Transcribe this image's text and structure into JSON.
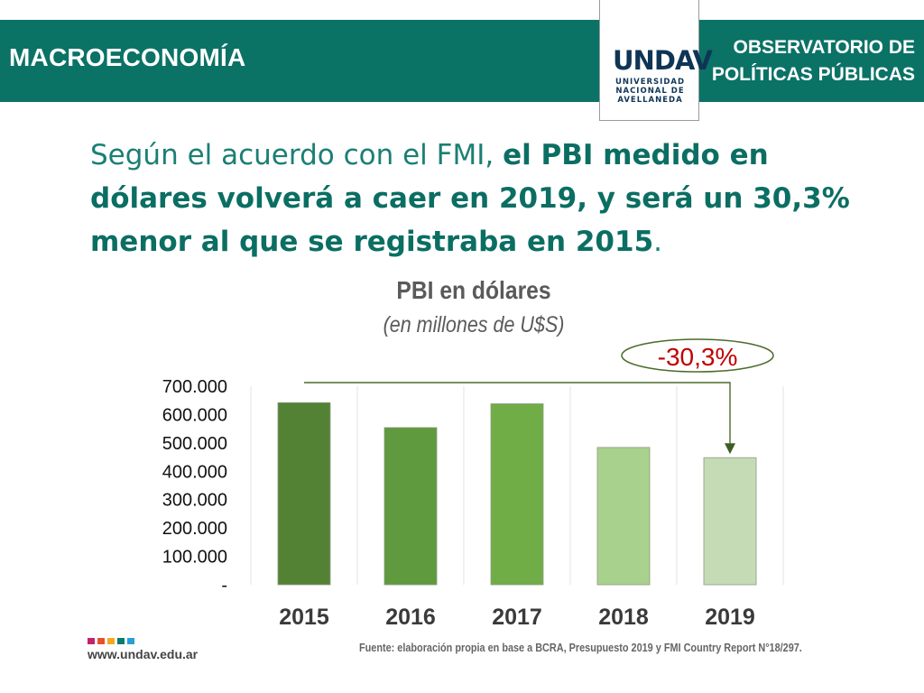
{
  "header": {
    "section_title": "MACROECONOMÍA",
    "observatorio_line1": "OBSERVATORIO DE",
    "observatorio_line2": "POLÍTICAS PÚBLICAS",
    "logo_text": "UNDAV",
    "logo_line1": "UNIVERSIDAD",
    "logo_line2": "NACIONAL DE",
    "logo_line3": "AVELLANEDA"
  },
  "headline": {
    "normal": "Según el acuerdo con el FMI, ",
    "bold": "el PBI medido en dólares volverá a caer en 2019, y será un 30,3% menor al que se registraba en 2015",
    "end": "."
  },
  "chart_data": {
    "type": "bar",
    "title": "PBI en dólares",
    "subtitle": "(en millones de U$S)",
    "categories": [
      "2015",
      "2016",
      "2017",
      "2018",
      "2019"
    ],
    "values": [
      642000,
      554000,
      638000,
      484000,
      448000
    ],
    "bar_colors": [
      "#548235",
      "#5f9a3e",
      "#70ad47",
      "#a9d18e",
      "#c5dbb6"
    ],
    "ylim": [
      0,
      700000
    ],
    "yticks": [
      0,
      100000,
      200000,
      300000,
      400000,
      500000,
      600000,
      700000
    ],
    "ytick_labels": [
      "-",
      "100.000",
      "200.000",
      "300.000",
      "400.000",
      "500.000",
      "600.000",
      "700.000"
    ],
    "annotation": {
      "text": "-30,3%",
      "from": "2015",
      "to": "2019",
      "color": "#c00000"
    },
    "grid": "vertical"
  },
  "footer": {
    "website": "www.undav.edu.ar",
    "source": "Fuente: elaboración propia en base a BCRA, Presupuesto 2019 y FMI Country Report N°18/297.",
    "square_colors": [
      "#c0236b",
      "#e94f2d",
      "#f4a81d",
      "#0c7a6e",
      "#2a9fd6"
    ]
  }
}
